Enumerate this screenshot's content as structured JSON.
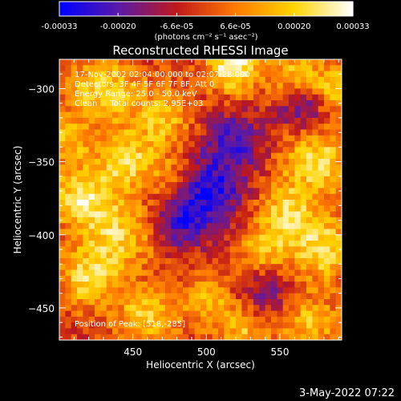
{
  "chart_data": {
    "type": "heatmap",
    "title": "Reconstructed RHESSI Image",
    "xlabel": "Heliocentric X (arcsec)",
    "ylabel": "Heliocentric Y (arcsec)",
    "xlim": [
      400,
      592
    ],
    "ylim": [
      -472,
      -280
    ],
    "x_ticks": [
      450,
      500,
      550
    ],
    "y_ticks": [
      -300,
      -350,
      -400,
      -450
    ],
    "annotations": [
      "17-Nov-2002 02:04:00.000 to 02:07:28.000",
      "Detectors: 3F 4F 5F 6F 7F 8F, Att 0",
      "Energy Range: 25.0 - 50.0 keV",
      "Clean     Total counts: 2.95E+03"
    ],
    "peak_label": "Position of Peak: [518,-285]",
    "peak": [
      518,
      -285
    ],
    "colorbar": {
      "range": [
        -0.00033,
        0.00033
      ],
      "tick_labels": [
        "-0.00033",
        "-0.00020",
        "-6.6e-05",
        "6.6e-05",
        "0.00020",
        "0.00033"
      ],
      "unit_label": "(photons cm⁻² s⁻¹ asec⁻²)",
      "colormap": [
        "#0000ff",
        "#5a1aa8",
        "#c0181a",
        "#ff7a00",
        "#ffd400",
        "#ffffff"
      ]
    },
    "blobs": [
      {
        "x": 518,
        "y": -285,
        "v": 1.0,
        "s": 12
      },
      {
        "x": 560,
        "y": -290,
        "v": 0.55,
        "s": 14
      },
      {
        "x": 430,
        "y": -300,
        "v": 0.7,
        "s": 16
      },
      {
        "x": 470,
        "y": -320,
        "v": 0.6,
        "s": 14
      },
      {
        "x": 405,
        "y": -335,
        "v": 0.55,
        "s": 12
      },
      {
        "x": 445,
        "y": -350,
        "v": 0.75,
        "s": 14
      },
      {
        "x": 415,
        "y": -375,
        "v": 0.8,
        "s": 14
      },
      {
        "x": 440,
        "y": -400,
        "v": 0.7,
        "s": 16
      },
      {
        "x": 480,
        "y": -360,
        "v": 0.5,
        "s": 12
      },
      {
        "x": 575,
        "y": -350,
        "v": 0.75,
        "s": 16
      },
      {
        "x": 555,
        "y": -385,
        "v": 0.7,
        "s": 14
      },
      {
        "x": 580,
        "y": -410,
        "v": 0.8,
        "s": 14
      },
      {
        "x": 540,
        "y": -410,
        "v": 0.55,
        "s": 12
      },
      {
        "x": 420,
        "y": -430,
        "v": 0.7,
        "s": 14
      },
      {
        "x": 460,
        "y": -455,
        "v": 0.65,
        "s": 14
      },
      {
        "x": 500,
        "y": -445,
        "v": 0.5,
        "s": 12
      },
      {
        "x": 525,
        "y": -465,
        "v": 0.55,
        "s": 12
      },
      {
        "x": 570,
        "y": -460,
        "v": 0.55,
        "s": 14
      },
      {
        "x": 590,
        "y": -300,
        "v": 0.65,
        "s": 12
      },
      {
        "x": 500,
        "y": -370,
        "v": -0.85,
        "s": 18
      },
      {
        "x": 520,
        "y": -335,
        "v": -0.6,
        "s": 14
      },
      {
        "x": 565,
        "y": -312,
        "v": -0.6,
        "s": 12
      },
      {
        "x": 482,
        "y": -392,
        "v": -0.55,
        "s": 12
      },
      {
        "x": 540,
        "y": -440,
        "v": -0.45,
        "s": 12
      }
    ]
  },
  "footer": {
    "date": "3-May-2022 07:22"
  }
}
